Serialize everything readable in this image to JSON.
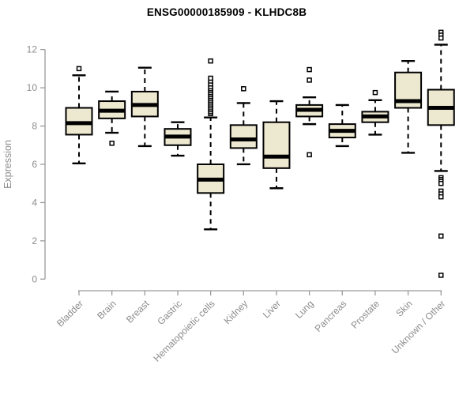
{
  "chart_data": {
    "type": "boxplot",
    "title": "ENSG00000185909 - KLHDC8B",
    "ylabel": "Expression",
    "xlabel": "",
    "ylim": [
      0,
      12
    ],
    "yticks": [
      0,
      2,
      4,
      6,
      8,
      10,
      12
    ],
    "grid": false,
    "legend": "none",
    "categories": [
      "Bladder",
      "Brain",
      "Breast",
      "Gastric",
      "Hematopoietic cells",
      "Kidney",
      "Liver",
      "Lung",
      "Pancreas",
      "Prostate",
      "Skin",
      "Unknown / Other"
    ],
    "series": [
      {
        "name": "Bladder",
        "whisker_low": 6.05,
        "q1": 7.55,
        "median": 8.15,
        "q3": 8.95,
        "whisker_high": 10.65,
        "outliers": [
          11.0
        ]
      },
      {
        "name": "Brain",
        "whisker_low": 7.65,
        "q1": 8.4,
        "median": 8.8,
        "q3": 9.3,
        "whisker_high": 9.8,
        "outliers": [
          7.1
        ]
      },
      {
        "name": "Breast",
        "whisker_low": 6.95,
        "q1": 8.5,
        "median": 9.1,
        "q3": 9.8,
        "whisker_high": 11.05,
        "outliers": []
      },
      {
        "name": "Gastric",
        "whisker_low": 6.45,
        "q1": 7.0,
        "median": 7.45,
        "q3": 7.85,
        "whisker_high": 8.2,
        "outliers": []
      },
      {
        "name": "Hematopoietic cells",
        "whisker_low": 2.6,
        "q1": 4.5,
        "median": 5.2,
        "q3": 6.0,
        "whisker_high": 8.45,
        "outliers": [
          8.65,
          8.75,
          8.85,
          8.95,
          9.05,
          9.15,
          9.25,
          9.35,
          9.45,
          9.55,
          9.65,
          9.75,
          9.85,
          9.95,
          10.05,
          10.2,
          10.35,
          10.5,
          11.4
        ]
      },
      {
        "name": "Kidney",
        "whisker_low": 6.0,
        "q1": 6.85,
        "median": 7.3,
        "q3": 8.05,
        "whisker_high": 9.2,
        "outliers": [
          9.95
        ]
      },
      {
        "name": "Liver",
        "whisker_low": 4.75,
        "q1": 5.8,
        "median": 6.4,
        "q3": 8.2,
        "whisker_high": 9.3,
        "outliers": []
      },
      {
        "name": "Lung",
        "whisker_low": 8.1,
        "q1": 8.5,
        "median": 8.85,
        "q3": 9.1,
        "whisker_high": 9.5,
        "outliers": [
          6.5,
          10.4,
          10.95
        ]
      },
      {
        "name": "Pancreas",
        "whisker_low": 6.95,
        "q1": 7.4,
        "median": 7.75,
        "q3": 8.1,
        "whisker_high": 9.1,
        "outliers": []
      },
      {
        "name": "Prostate",
        "whisker_low": 7.55,
        "q1": 8.2,
        "median": 8.5,
        "q3": 8.75,
        "whisker_high": 9.35,
        "outliers": [
          9.75
        ]
      },
      {
        "name": "Skin",
        "whisker_low": 6.6,
        "q1": 8.95,
        "median": 9.3,
        "q3": 10.8,
        "whisker_high": 11.4,
        "outliers": []
      },
      {
        "name": "Unknown / Other",
        "whisker_low": 5.65,
        "q1": 8.05,
        "median": 8.95,
        "q3": 9.9,
        "whisker_high": 12.25,
        "outliers": [
          12.9,
          12.75,
          12.6,
          5.3,
          5.2,
          5.1,
          5.0,
          4.6,
          4.45,
          4.3,
          2.25,
          0.2
        ]
      }
    ],
    "colors": {
      "box_fill": "#EDE8D0",
      "box_stroke": "#000000",
      "median": "#000000",
      "whisker": "#000000",
      "outlier_stroke": "#000000",
      "axis": "#9a9a9a",
      "tick_label": "#8c8c8c",
      "title": "#000000",
      "background": "#FFFFFF"
    }
  }
}
